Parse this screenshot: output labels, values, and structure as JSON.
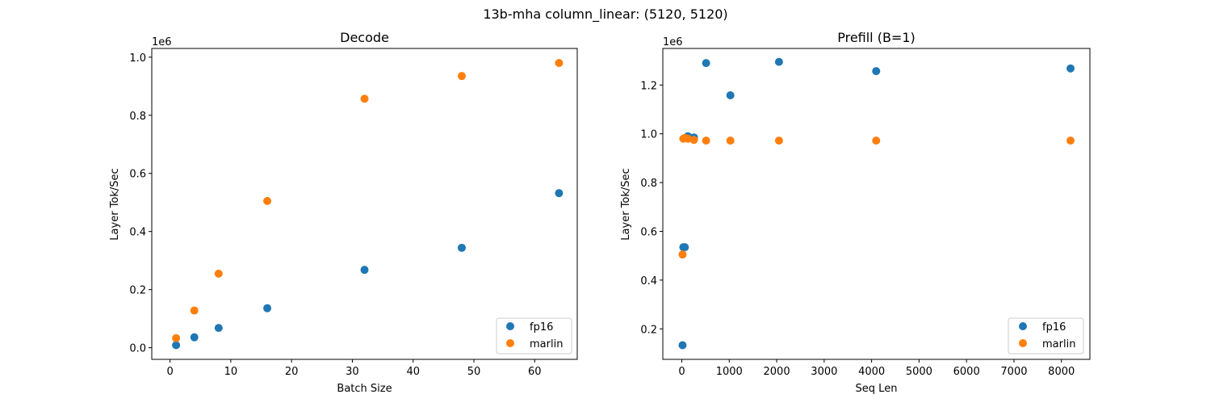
{
  "suptitle": "13b-mha column_linear: (5120, 5120)",
  "colors": {
    "fp16": "#1f77b4",
    "marlin": "#ff7f0e"
  },
  "chart_data": [
    {
      "type": "scatter",
      "title": "Decode",
      "xlabel": "Batch Size",
      "ylabel": "Layer Tok/Sec",
      "offset_text": "1e6",
      "xlim": [
        -3,
        67
      ],
      "ylim": [
        -0.04,
        1.03
      ],
      "xticks": [
        0,
        10,
        20,
        30,
        40,
        50,
        60
      ],
      "xtick_labels": [
        "0",
        "10",
        "20",
        "30",
        "40",
        "50",
        "60"
      ],
      "yticks": [
        0.0,
        0.2,
        0.4,
        0.6,
        0.8,
        1.0
      ],
      "ytick_labels": [
        "0.0",
        "0.2",
        "0.4",
        "0.6",
        "0.8",
        "1.0"
      ],
      "legend_position": "lower-right",
      "grid": false,
      "series": [
        {
          "name": "fp16",
          "x": [
            1,
            4,
            8,
            16,
            32,
            48,
            64
          ],
          "y": [
            0.009,
            0.036,
            0.068,
            0.136,
            0.268,
            0.344,
            0.532
          ]
        },
        {
          "name": "marlin",
          "x": [
            1,
            4,
            8,
            16,
            32,
            48,
            64
          ],
          "y": [
            0.033,
            0.128,
            0.255,
            0.505,
            0.857,
            0.935,
            0.98
          ]
        }
      ]
    },
    {
      "type": "scatter",
      "title": "Prefill (B=1)",
      "xlabel": "Seq Len",
      "ylabel": "Layer Tok/Sec",
      "offset_text": "1e6",
      "xlim": [
        -400,
        8600
      ],
      "ylim": [
        0.075,
        1.35
      ],
      "xticks": [
        0,
        1000,
        2000,
        3000,
        4000,
        5000,
        6000,
        7000,
        8000
      ],
      "xtick_labels": [
        "0",
        "1000",
        "2000",
        "3000",
        "4000",
        "5000",
        "6000",
        "7000",
        "8000"
      ],
      "yticks": [
        0.2,
        0.4,
        0.6,
        0.8,
        1.0,
        1.2
      ],
      "ytick_labels": [
        "0.2",
        "0.4",
        "0.6",
        "0.8",
        "1.0",
        "1.2"
      ],
      "legend_position": "lower-right",
      "grid": false,
      "series": [
        {
          "name": "fp16",
          "x": [
            16,
            32,
            64,
            128,
            256,
            512,
            1024,
            2048,
            4096,
            8192
          ],
          "y": [
            0.133,
            0.535,
            0.535,
            0.99,
            0.985,
            1.29,
            1.158,
            1.295,
            1.257,
            1.268
          ]
        },
        {
          "name": "marlin",
          "x": [
            16,
            32,
            64,
            128,
            256,
            512,
            1024,
            2048,
            4096,
            8192
          ],
          "y": [
            0.505,
            0.98,
            0.983,
            0.98,
            0.975,
            0.972,
            0.972,
            0.972,
            0.972,
            0.972
          ]
        }
      ]
    }
  ]
}
